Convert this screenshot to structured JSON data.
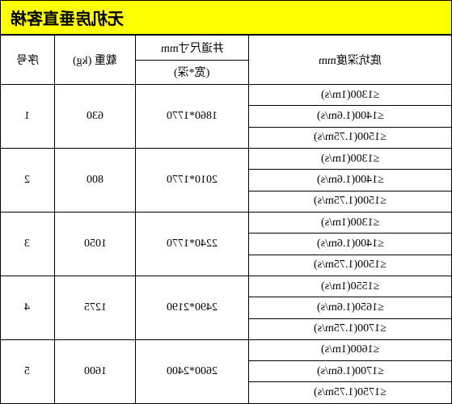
{
  "title": "无机房垂直客梯",
  "headers": {
    "seq": "序号",
    "load": "载重 (kg)",
    "shaft": "井道尺寸mm",
    "shaft_sub": "(宽*深)",
    "depth": "底坑深度mm"
  },
  "table": {
    "colors": {
      "title_bg": "#ffff00",
      "border": "#000000",
      "text": "#000000"
    },
    "fontsize": 14,
    "title_fontsize": 20,
    "rows": [
      {
        "seq": "1",
        "load": "630",
        "shaft": "1860*1770",
        "depths": [
          "≤1300(1m/s)",
          "≤1400(1.6m/s)",
          "≤1500(1.75m/s)"
        ]
      },
      {
        "seq": "2",
        "load": "800",
        "shaft": "2010*1770",
        "depths": [
          "≤1300(1m/s)",
          "≤1400(1.6m/s)",
          "≤1500(1.75m/s)"
        ]
      },
      {
        "seq": "3",
        "load": "1050",
        "shaft": "2240*1770",
        "depths": [
          "≤1300(1m/s)",
          "≤1400(1.6m/s)",
          "≤1500(1.75m/s)"
        ]
      },
      {
        "seq": "4",
        "load": "1275",
        "shaft": "2490*2190",
        "depths": [
          "≤1550(1m/s)",
          "≤1650(1.6m/s)",
          "≤1700(1.75m/s)"
        ]
      },
      {
        "seq": "5",
        "load": "1600",
        "shaft": "2600*2400",
        "depths": [
          "≤1600(1m/s)",
          "≤1700(1.6m/s)",
          "≤1750(1.75m/s)"
        ]
      }
    ]
  }
}
